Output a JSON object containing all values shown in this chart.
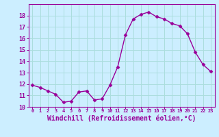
{
  "x": [
    0,
    1,
    2,
    3,
    4,
    5,
    6,
    7,
    8,
    9,
    10,
    11,
    12,
    13,
    14,
    15,
    16,
    17,
    18,
    19,
    20,
    21,
    22,
    23
  ],
  "y": [
    11.9,
    11.7,
    11.4,
    11.1,
    10.4,
    10.5,
    11.3,
    11.4,
    10.6,
    10.7,
    11.9,
    13.5,
    16.3,
    17.7,
    18.1,
    18.3,
    17.9,
    17.7,
    17.3,
    17.1,
    16.4,
    14.8,
    13.7,
    13.1
  ],
  "line_color": "#990099",
  "marker": "D",
  "marker_size": 2.5,
  "xlabel": "Windchill (Refroidissement éolien,°C)",
  "xtick_labels": [
    "0",
    "1",
    "2",
    "3",
    "4",
    "5",
    "6",
    "7",
    "8",
    "9",
    "10",
    "11",
    "12",
    "13",
    "14",
    "15",
    "16",
    "17",
    "18",
    "19",
    "20",
    "21",
    "22",
    "23"
  ],
  "ylim": [
    10,
    19
  ],
  "ytick_values": [
    10,
    11,
    12,
    13,
    14,
    15,
    16,
    17,
    18
  ],
  "background_color": "#cceeff",
  "grid_color": "#aadddd",
  "line_width": 1.0
}
